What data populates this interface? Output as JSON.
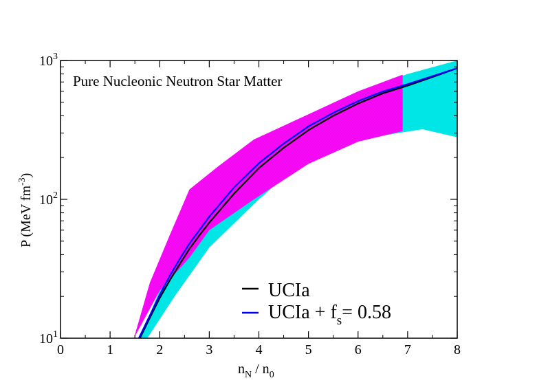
{
  "chart_data": {
    "type": "line",
    "title": "Pure Nucleonic Neutron Star Matter",
    "xlabel": {
      "main": "n",
      "sub1": "N",
      "mid": " / n",
      "sub2": "0"
    },
    "ylabel": {
      "main": "P (MeV fm",
      "sup": "-3",
      "end": ")"
    },
    "xlim": [
      0,
      8
    ],
    "ylim": [
      10,
      1000
    ],
    "yscale": "log",
    "x_ticks": [
      "0",
      "1",
      "2",
      "3",
      "4",
      "5",
      "6",
      "7",
      "8"
    ],
    "y_ticks": [
      {
        "value": 10,
        "base": "10",
        "exp": "1"
      },
      {
        "value": 100,
        "base": "10",
        "exp": "2"
      },
      {
        "value": 1000,
        "base": "10",
        "exp": "3"
      }
    ],
    "legend": {
      "placement": "bottom-right",
      "entries": [
        {
          "label": "UCIa",
          "color": "#000000"
        },
        {
          "label_main": "UCIa + f",
          "label_sub": "s",
          "label_end": "= 0.58",
          "color": "#0000ff"
        }
      ]
    },
    "bands": [
      {
        "name": "cyan band",
        "color": "#00e5e5",
        "lower": [
          [
            1.75,
            10
          ],
          [
            2.3,
            20
          ],
          [
            3.0,
            45
          ],
          [
            4.0,
            100
          ],
          [
            5.0,
            205
          ],
          [
            6.0,
            270
          ],
          [
            7.3,
            320
          ],
          [
            8.0,
            280
          ]
        ],
        "upper": [
          [
            1.6,
            10
          ],
          [
            2.5,
            60
          ],
          [
            3.5,
            150
          ],
          [
            4.5,
            280
          ],
          [
            5.2,
            430
          ],
          [
            6.0,
            600
          ],
          [
            7.0,
            800
          ],
          [
            8.0,
            1000
          ]
        ]
      },
      {
        "name": "magenta band",
        "color": "#ff00ff",
        "lower": [
          [
            1.48,
            10
          ],
          [
            2.0,
            22
          ],
          [
            2.6,
            38
          ],
          [
            3.0,
            60
          ],
          [
            3.9,
            100
          ],
          [
            5.0,
            180
          ],
          [
            6.0,
            260
          ],
          [
            6.9,
            310
          ]
        ],
        "upper": [
          [
            1.48,
            10
          ],
          [
            1.8,
            25
          ],
          [
            2.2,
            55
          ],
          [
            2.6,
            118
          ],
          [
            3.2,
            175
          ],
          [
            3.9,
            270
          ],
          [
            5.0,
            410
          ],
          [
            6.0,
            600
          ],
          [
            6.9,
            790
          ]
        ]
      }
    ],
    "series": [
      {
        "name": "UCIa",
        "color": "#000000",
        "x": [
          1.6,
          1.8,
          2.0,
          2.2,
          2.4,
          2.6,
          2.8,
          3.0,
          3.5,
          4.0,
          4.5,
          5.0,
          5.5,
          6.0,
          6.5,
          7.0,
          7.5,
          8.0
        ],
        "y": [
          10,
          14,
          19.5,
          26,
          34,
          44,
          55,
          68,
          110,
          168,
          235,
          315,
          400,
          490,
          580,
          660,
          760,
          880
        ]
      },
      {
        "name": "UCIa + fs = 0.58",
        "color": "#0000ff",
        "x": [
          1.58,
          1.8,
          2.0,
          2.2,
          2.4,
          2.6,
          2.8,
          3.0,
          3.5,
          4.0,
          4.5,
          5.0,
          5.5,
          6.0,
          6.5,
          7.0,
          7.5,
          8.0
        ],
        "y": [
          10,
          14.5,
          20.5,
          28,
          37,
          48,
          60,
          75,
          122,
          182,
          252,
          335,
          420,
          510,
          598,
          675,
          770,
          880
        ]
      }
    ]
  }
}
